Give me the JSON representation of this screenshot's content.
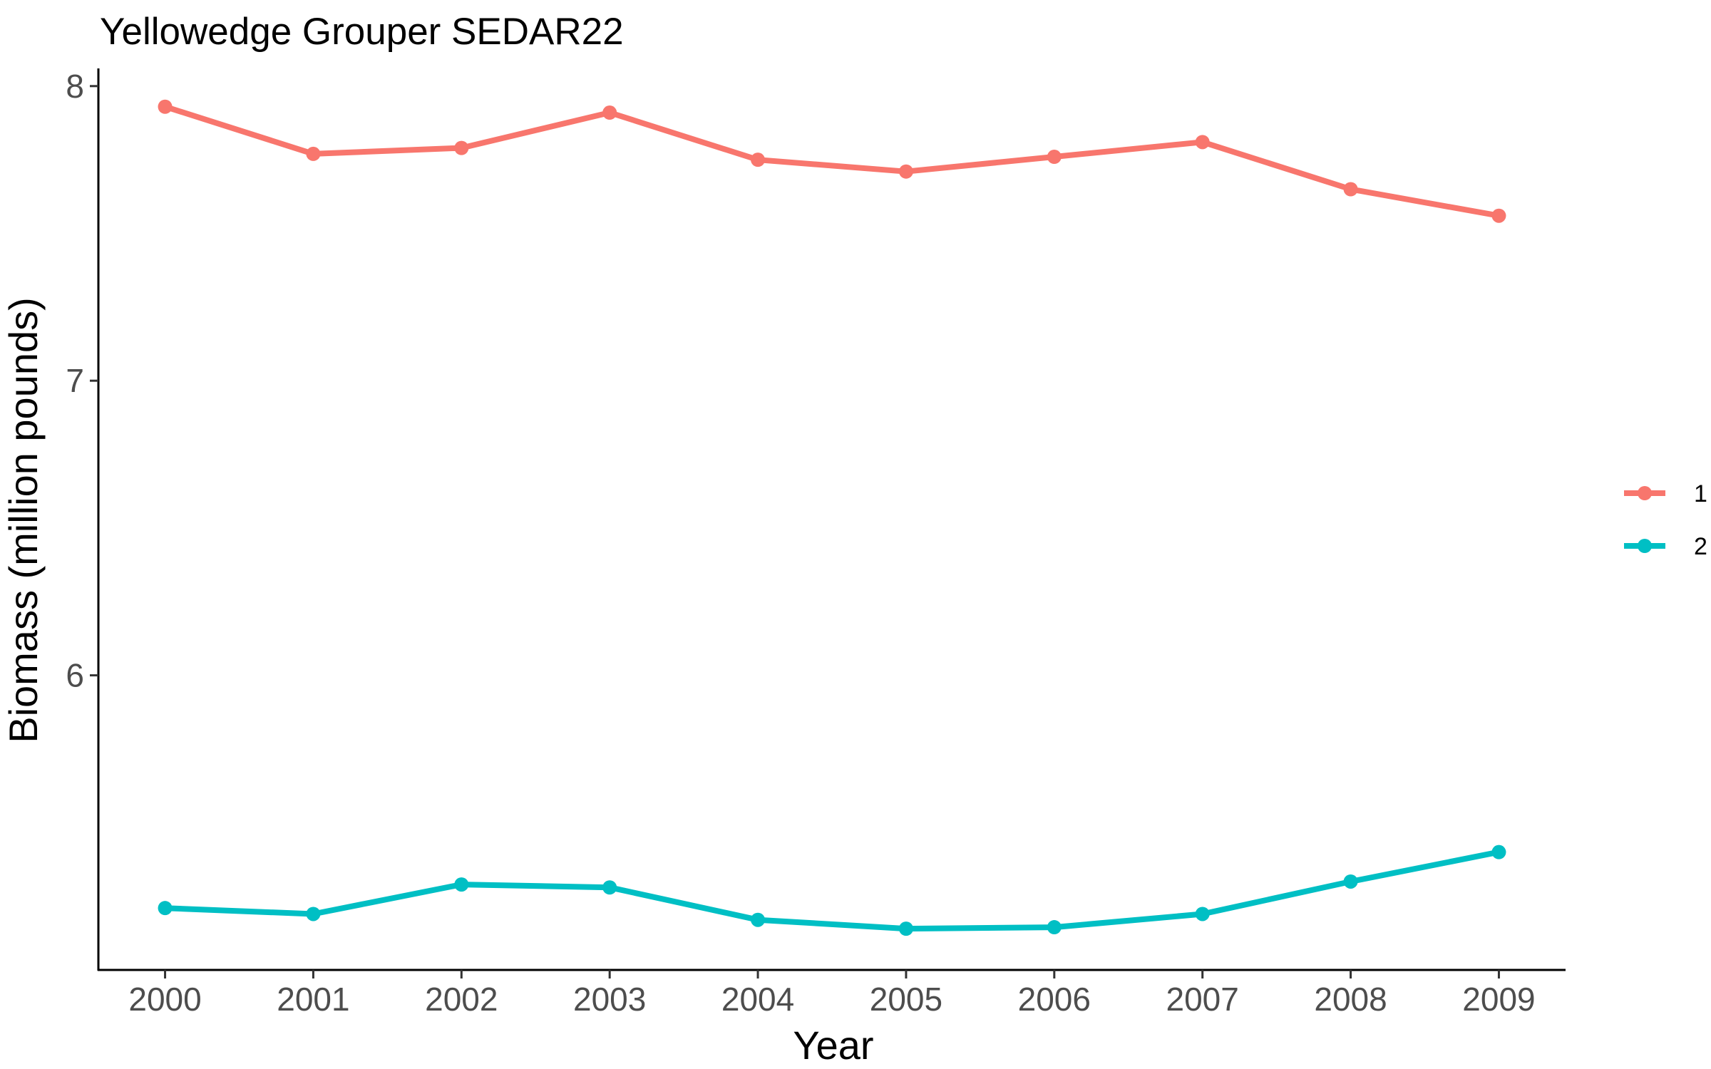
{
  "chart_data": {
    "type": "line",
    "title": "Yellowedge Grouper SEDAR22",
    "xlabel": "Year",
    "ylabel": "Biomass (million pounds)",
    "x": [
      2000,
      2001,
      2002,
      2003,
      2004,
      2005,
      2006,
      2007,
      2008,
      2009
    ],
    "x_tick_labels": [
      "2000",
      "2001",
      "2002",
      "2003",
      "2004",
      "2005",
      "2006",
      "2007",
      "2008",
      "2009"
    ],
    "y_ticks": [
      6,
      7,
      8
    ],
    "y_tick_labels": [
      "6",
      "7",
      "8"
    ],
    "xlim": [
      1999.55,
      2009.45
    ],
    "ylim": [
      5.0,
      8.06
    ],
    "grid": false,
    "legend_position": "right",
    "series": [
      {
        "name": "1",
        "color": "#F8766D",
        "values": [
          7.93,
          7.77,
          7.79,
          7.91,
          7.75,
          7.71,
          7.76,
          7.81,
          7.65,
          7.56
        ]
      },
      {
        "name": "2",
        "color": "#00BFC4",
        "values": [
          5.21,
          5.19,
          5.29,
          5.28,
          5.17,
          5.14,
          5.145,
          5.19,
          5.3,
          5.4
        ]
      }
    ]
  }
}
